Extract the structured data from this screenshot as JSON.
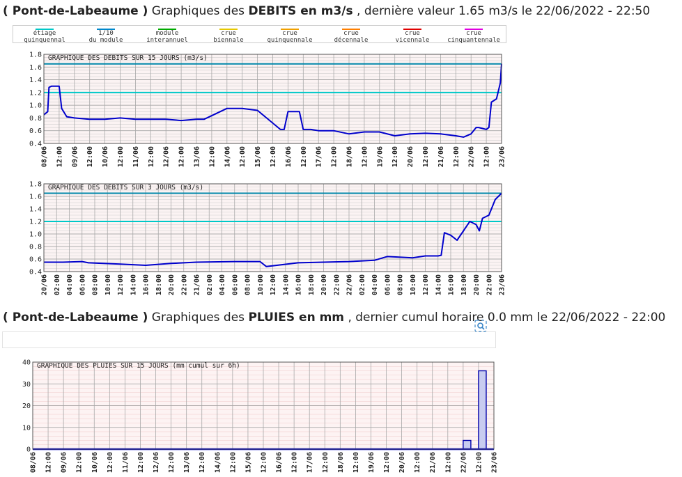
{
  "heading_flow": {
    "station": "( Pont-de-Labeaume )",
    "prefix": "Graphiques des",
    "measure": "DEBITS en m3/s",
    "suffix": ", dernière valeur 1.65 m3/s le 22/06/2022 - 22:50"
  },
  "heading_rain": {
    "station": "( Pont-de-Labeaume )",
    "prefix": "Graphiques des",
    "measure": "PLUIES en mm",
    "suffix": ", dernier cumul horaire 0.0 mm le 22/06/2022 - 22:00"
  },
  "legend": [
    {
      "line1": "étiage",
      "line2": "quinquennal",
      "color": "#00c8c8"
    },
    {
      "line1": "1/10",
      "line2": "du module",
      "color": "#0088cc"
    },
    {
      "line1": "module",
      "line2": "interannuel",
      "color": "#00aa00"
    },
    {
      "line1": "crue",
      "line2": "biennale",
      "color": "#e6c800"
    },
    {
      "line1": "crue",
      "line2": "quinquennale",
      "color": "#f0a000"
    },
    {
      "line1": "crue",
      "line2": "décennale",
      "color": "#ff7f00"
    },
    {
      "line1": "crue",
      "line2": "vicennale",
      "color": "#e00000"
    },
    {
      "line1": "crue",
      "line2": "cinquantennale",
      "color": "#e000e0"
    }
  ],
  "icons": {
    "zoom": "zoom-icon"
  },
  "chart_data": [
    {
      "type": "line",
      "title": "GRAPHIQUE DES DEBITS SUR 15 JOURS (m3/s)",
      "ylim": [
        0.4,
        1.8
      ],
      "yticks": [
        "0.4",
        "0.6",
        "0.8",
        "1.0",
        "1.2",
        "1.4",
        "1.6",
        "1.8"
      ],
      "xticks": [
        "08/06",
        "12:00",
        "09/06",
        "12:00",
        "10/06",
        "12:00",
        "11/06",
        "12:00",
        "12/06",
        "12:00",
        "13/06",
        "12:00",
        "14/06",
        "12:00",
        "15/06",
        "12:00",
        "16/06",
        "12:00",
        "17/06",
        "12:00",
        "18/06",
        "12:00",
        "19/06",
        "12:00",
        "20/06",
        "12:00",
        "21/06",
        "12:00",
        "22/06",
        "12:00",
        "23/06"
      ],
      "x_unit": "hours since 08/06 00:00",
      "xlim": [
        0,
        360
      ],
      "reference_lines": [
        {
          "value": 1.2,
          "color": "#00c8c8"
        },
        {
          "value": 1.65,
          "color": "#0088aa"
        }
      ],
      "series": [
        {
          "color": "#0000cc",
          "x": [
            0,
            3,
            4,
            6,
            12,
            14,
            18,
            24,
            36,
            48,
            60,
            72,
            96,
            108,
            120,
            126,
            144,
            156,
            168,
            186,
            189,
            192,
            201,
            204,
            210,
            216,
            228,
            240,
            252,
            264,
            276,
            288,
            300,
            312,
            324,
            330,
            336,
            340,
            342,
            348,
            350,
            352,
            356,
            359,
            360
          ],
          "y": [
            0.85,
            0.9,
            1.28,
            1.3,
            1.3,
            0.95,
            0.82,
            0.8,
            0.78,
            0.78,
            0.8,
            0.78,
            0.78,
            0.76,
            0.78,
            0.78,
            0.95,
            0.95,
            0.92,
            0.62,
            0.62,
            0.9,
            0.9,
            0.62,
            0.62,
            0.6,
            0.6,
            0.55,
            0.58,
            0.58,
            0.52,
            0.55,
            0.56,
            0.55,
            0.52,
            0.5,
            0.55,
            0.65,
            0.65,
            0.62,
            0.65,
            1.05,
            1.1,
            1.35,
            1.65
          ]
        }
      ]
    },
    {
      "type": "line",
      "title": "GRAPHIQUE DES DEBITS SUR 3 JOURS (m3/s)",
      "ylim": [
        0.4,
        1.8
      ],
      "yticks": [
        "0.4",
        "0.6",
        "0.8",
        "1.0",
        "1.2",
        "1.4",
        "1.6",
        "1.8"
      ],
      "xticks": [
        "20/06",
        "02:00",
        "04:00",
        "06:00",
        "08:00",
        "10:00",
        "12:00",
        "14:00",
        "16:00",
        "18:00",
        "20:00",
        "22:00",
        "21/06",
        "02:00",
        "04:00",
        "06:00",
        "08:00",
        "10:00",
        "12:00",
        "14:00",
        "16:00",
        "18:00",
        "20:00",
        "22:00",
        "22/06",
        "02:00",
        "04:00",
        "06:00",
        "08:00",
        "10:00",
        "12:00",
        "14:00",
        "16:00",
        "18:00",
        "20:00",
        "22:00",
        "23/06"
      ],
      "x_unit": "hours since 20/06 00:00",
      "xlim": [
        0,
        72
      ],
      "reference_lines": [
        {
          "value": 1.2,
          "color": "#00c8c8"
        },
        {
          "value": 1.65,
          "color": "#0088aa"
        }
      ],
      "series": [
        {
          "color": "#0000cc",
          "x": [
            0,
            3,
            6,
            7,
            12,
            16,
            20,
            24,
            30,
            34,
            35,
            40,
            48,
            52,
            54,
            58,
            60,
            62,
            62.5,
            63,
            64,
            65,
            66,
            67,
            68,
            68.5,
            69,
            70,
            71,
            72
          ],
          "y": [
            0.55,
            0.55,
            0.56,
            0.54,
            0.52,
            0.5,
            0.53,
            0.55,
            0.56,
            0.56,
            0.48,
            0.54,
            0.56,
            0.58,
            0.64,
            0.62,
            0.65,
            0.65,
            0.66,
            1.02,
            0.98,
            0.9,
            1.05,
            1.2,
            1.15,
            1.05,
            1.25,
            1.3,
            1.55,
            1.65
          ]
        }
      ]
    },
    {
      "type": "bar",
      "title": "GRAPHIQUE DES PLUIES SUR 15 JOURS (mm cumul sur 6h)",
      "ylim": [
        0,
        40
      ],
      "yticks": [
        "0",
        "10",
        "20",
        "30",
        "40"
      ],
      "xticks": [
        "08/06",
        "12:00",
        "09/06",
        "12:00",
        "10/06",
        "12:00",
        "11/06",
        "12:00",
        "12/06",
        "12:00",
        "13/06",
        "12:00",
        "14/06",
        "12:00",
        "15/06",
        "12:00",
        "16/06",
        "12:00",
        "17/06",
        "12:00",
        "18/06",
        "12:00",
        "19/06",
        "12:00",
        "20/06",
        "12:00",
        "21/06",
        "12:00",
        "22/06",
        "12:00",
        "23/06"
      ],
      "x_unit": "hours since 08/06 00:00",
      "xlim": [
        0,
        360
      ],
      "bars": [
        {
          "x_start": 336,
          "x_end": 342,
          "value": 4
        },
        {
          "x_start": 348,
          "x_end": 354,
          "value": 36
        }
      ]
    }
  ]
}
